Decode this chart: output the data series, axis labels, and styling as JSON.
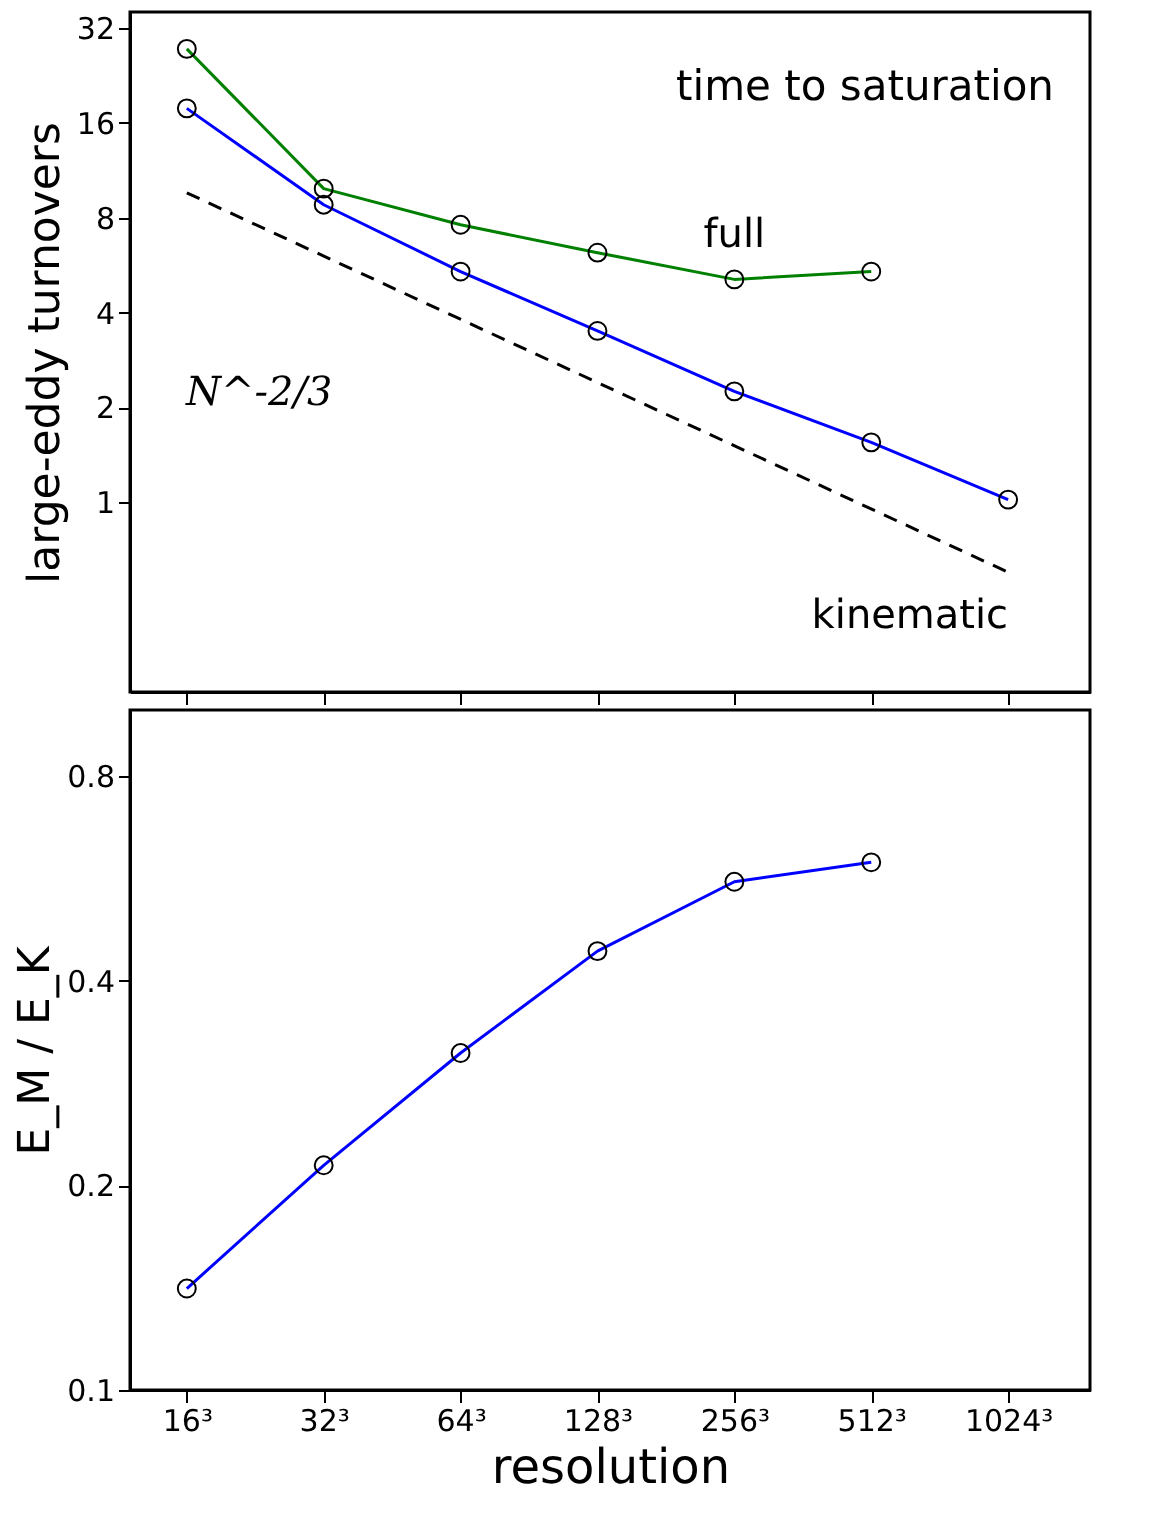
{
  "chart_data": [
    {
      "type": "line",
      "title": "time to saturation",
      "ylabel": "large-eddy turnovers",
      "annotations": [
        "N^-2/3"
      ],
      "xlim": [
        12,
        1550
      ],
      "xticks": [
        {
          "value": 16,
          "label": null
        },
        {
          "value": 32,
          "label": null
        },
        {
          "value": 64,
          "label": null
        },
        {
          "value": 128,
          "label": null
        },
        {
          "value": 256,
          "label": null
        },
        {
          "value": 512,
          "label": null
        },
        {
          "value": 1024,
          "label": null
        }
      ],
      "ylim": [
        0.25,
        36
      ],
      "yticks": [
        1,
        2,
        4,
        8,
        16,
        32
      ],
      "log": "xy",
      "grid": false,
      "tick_labels": "y",
      "series": [
        {
          "name": "full",
          "color": "#008000",
          "marker": "circle",
          "x": [
            16,
            32,
            64,
            128,
            256,
            512
          ],
          "values": [
            27.5,
            9.9,
            7.6,
            6.2,
            5.1,
            5.4
          ]
        },
        {
          "color": "#0000ff",
          "marker": "circle",
          "x": [
            16,
            32,
            64,
            128,
            256,
            512,
            1024
          ],
          "values": [
            17.8,
            8.8,
            5.4,
            3.5,
            2.25,
            1.55,
            1.02
          ]
        },
        {
          "name": "kinematic",
          "color": "#000000",
          "marker": "none",
          "line_style": "dashed",
          "x": [
            16,
            1024
          ],
          "values": [
            9.6,
            0.6
          ]
        }
      ]
    },
    {
      "type": "line",
      "xlabel": "resolution",
      "ylabel": "E_M / E_K",
      "xlim": [
        12,
        1550
      ],
      "xticks": [
        {
          "value": 16,
          "label": "16³"
        },
        {
          "value": 32,
          "label": "32³"
        },
        {
          "value": 64,
          "label": "64³"
        },
        {
          "value": 128,
          "label": "128³"
        },
        {
          "value": 256,
          "label": "256³"
        },
        {
          "value": 512,
          "label": "512³"
        },
        {
          "value": 1024,
          "label": "1024³"
        }
      ],
      "ylim": [
        0.1,
        1.0
      ],
      "yticks": [
        0.1,
        0.2,
        0.4,
        0.8
      ],
      "log": "xy",
      "grid": false,
      "series": [
        {
          "color": "#0000ff",
          "marker": "circle",
          "x": [
            16,
            32,
            64,
            128,
            256,
            512
          ],
          "values": [
            0.141,
            0.214,
            0.313,
            0.442,
            0.559,
            0.597
          ]
        }
      ]
    }
  ]
}
